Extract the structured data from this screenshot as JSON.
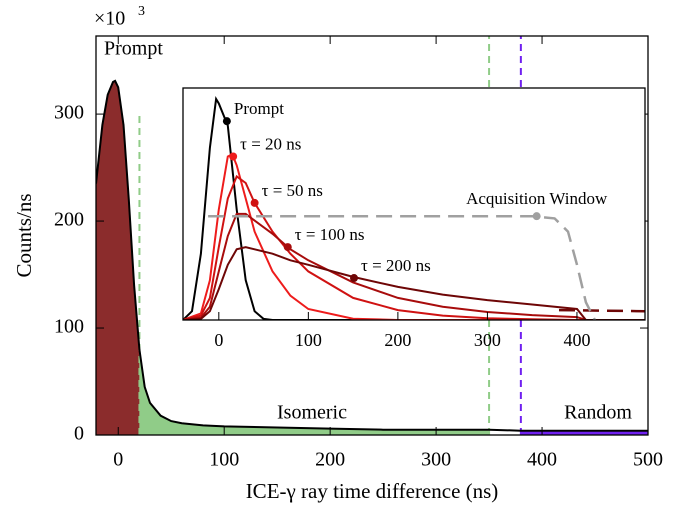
{
  "chart_data": [
    {
      "type": "line",
      "y_label": "Counts/ns",
      "x_label": "ICE-γ ray time difference (ns)",
      "y_multiplier": "×10",
      "y_multiplier_exponent": "3",
      "xlim": [
        -21,
        500
      ],
      "ylim": [
        0,
        373
      ],
      "xticks": [
        0,
        100,
        200,
        300,
        400,
        500
      ],
      "yticks": [
        0,
        100,
        200,
        300
      ],
      "x": [
        -21,
        -15,
        -10,
        -5,
        -3,
        0,
        5,
        10,
        15,
        20,
        25,
        30,
        40,
        50,
        60,
        80,
        100,
        150,
        200,
        250,
        300,
        350,
        380,
        400,
        450,
        500
      ],
      "series": [
        {
          "color": "#000000",
          "values": [
            235,
            290,
            318,
            330,
            331,
            325,
            290,
            220,
            140,
            80,
            45,
            30,
            18,
            13,
            11,
            9,
            8,
            7,
            6,
            5,
            5,
            5,
            4,
            4,
            4,
            4
          ]
        }
      ],
      "regions": [
        {
          "label": "Prompt",
          "x0": -21,
          "x1": 20,
          "color": "#8b2c2c",
          "label_color": "#9c3c3c"
        },
        {
          "label": "Isomeric",
          "x0": 20,
          "x1": 350,
          "color": "#90cc88",
          "label_color": "#90cc88"
        },
        {
          "label": "Random",
          "x0": 380,
          "x1": 500,
          "color": "#7020f0",
          "label_color": "#7020f0"
        }
      ],
      "markers": [
        {
          "x": 20,
          "ytop": 300,
          "color": "#90cc88"
        },
        {
          "x": 350,
          "color": "#90cc88"
        },
        {
          "x": 380,
          "color": "#7020f0"
        }
      ]
    },
    {
      "type": "line",
      "xlim": [
        -40,
        476
      ],
      "ylim": [
        0,
        1.05
      ],
      "xticks": [
        0,
        100,
        200,
        300,
        400
      ],
      "series": [
        {
          "name": "Prompt",
          "color": "#000000",
          "label_color": "#7020f0",
          "x": [
            -40,
            -30,
            -20,
            -10,
            -3,
            0,
            10,
            20,
            30,
            40,
            50,
            60,
            476
          ],
          "values": [
            0,
            0.04,
            0.3,
            0.78,
            1.0,
            0.98,
            0.88,
            0.5,
            0.18,
            0.04,
            0.005,
            0,
            0
          ],
          "marker": {
            "x": 9,
            "y": 0.9
          }
        },
        {
          "name": "τ = 20 ns",
          "color": "#ee1c1c",
          "label_color": "#ee1c1c",
          "x": [
            -40,
            -20,
            -10,
            0,
            10,
            15,
            20,
            30,
            40,
            60,
            80,
            100,
            150,
            200,
            476
          ],
          "values": [
            0,
            0.03,
            0.18,
            0.5,
            0.74,
            0.75,
            0.7,
            0.55,
            0.4,
            0.22,
            0.11,
            0.05,
            0.006,
            0,
            0
          ],
          "marker": {
            "x": 16,
            "y": 0.74
          }
        },
        {
          "name": "τ = 50 ns",
          "color": "#d01212",
          "label_color": "#d01212",
          "x": [
            -40,
            -20,
            -10,
            0,
            10,
            20,
            30,
            40,
            60,
            80,
            100,
            150,
            200,
            250,
            300,
            350,
            400,
            476
          ],
          "values": [
            0,
            0.02,
            0.1,
            0.33,
            0.55,
            0.65,
            0.62,
            0.53,
            0.4,
            0.3,
            0.22,
            0.1,
            0.045,
            0.02,
            0.008,
            0.003,
            0,
            0
          ],
          "marker": {
            "x": 40,
            "y": 0.53
          }
        },
        {
          "name": "τ = 100 ns",
          "color": "#a80c0c",
          "label_color": "#a80c0c",
          "x": [
            -40,
            -20,
            -10,
            0,
            10,
            20,
            30,
            40,
            60,
            80,
            100,
            150,
            200,
            250,
            300,
            350,
            400,
            410,
            476
          ],
          "values": [
            0,
            0.01,
            0.06,
            0.22,
            0.38,
            0.48,
            0.48,
            0.45,
            0.39,
            0.32,
            0.27,
            0.17,
            0.1,
            0.06,
            0.036,
            0.022,
            0.013,
            0,
            0
          ],
          "marker": {
            "x": 77,
            "y": 0.33
          }
        },
        {
          "name": "τ = 200 ns",
          "color": "#6e0606",
          "label_color": "#6e0606",
          "x": [
            -40,
            -20,
            -10,
            0,
            10,
            20,
            30,
            40,
            60,
            80,
            100,
            150,
            200,
            250,
            300,
            350,
            400,
            410,
            476
          ],
          "values": [
            0,
            0.005,
            0.04,
            0.14,
            0.25,
            0.32,
            0.33,
            0.32,
            0.3,
            0.27,
            0.25,
            0.195,
            0.15,
            0.115,
            0.09,
            0.07,
            0.05,
            0,
            0
          ],
          "marker": {
            "x": 151,
            "y": 0.19
          }
        },
        {
          "color": "#6e0606",
          "dash": true,
          "x": [
            380,
            476
          ],
          "values": [
            0.045,
            0.04
          ]
        },
        {
          "name": "Acquisition Window",
          "color": "#a0a0a0",
          "label_color": "#a0a0a0",
          "dash": true,
          "x": [
            -12,
            350,
            375,
            390,
            400,
            410,
            420
          ],
          "values": [
            0.47,
            0.47,
            0.46,
            0.4,
            0.25,
            0.08,
            0
          ],
          "marker": {
            "x": 355,
            "y": 0.47
          }
        }
      ]
    }
  ]
}
